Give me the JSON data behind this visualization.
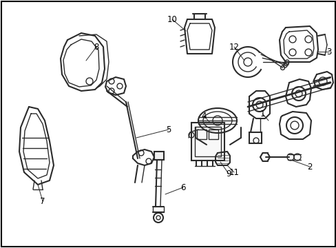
{
  "background_color": "#ffffff",
  "line_color": "#2a2a2a",
  "label_color": "#000000",
  "border_color": "#000000",
  "fig_width": 4.89,
  "fig_height": 3.6,
  "dpi": 100
}
